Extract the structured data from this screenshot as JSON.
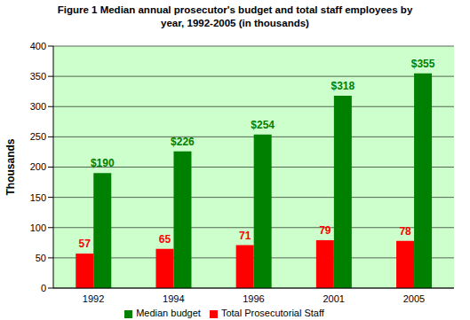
{
  "chart_data": {
    "type": "bar",
    "title": "Figure 1 Median annual prosecutor's budget and total staff employees by year, 1992-2005 (in thousands)",
    "y_label": "Thousands",
    "categories": [
      "1992",
      "1994",
      "1996",
      "2001",
      "2005"
    ],
    "series": [
      {
        "name": "Total Prosecutorial Staff",
        "color": "#ff0000",
        "values": [
          57,
          65,
          71,
          79,
          78
        ]
      },
      {
        "name": "Median budget",
        "color": "#008000",
        "values": [
          190,
          226,
          254,
          318,
          355
        ],
        "value_labels": [
          "$190",
          "$226",
          "$254",
          "$318",
          "$355"
        ]
      }
    ],
    "ylim": [
      0,
      400
    ],
    "yticks": [
      0,
      50,
      100,
      150,
      200,
      250,
      300,
      350,
      400
    ],
    "grid": true,
    "legend": "bottom",
    "data_labels": true
  }
}
